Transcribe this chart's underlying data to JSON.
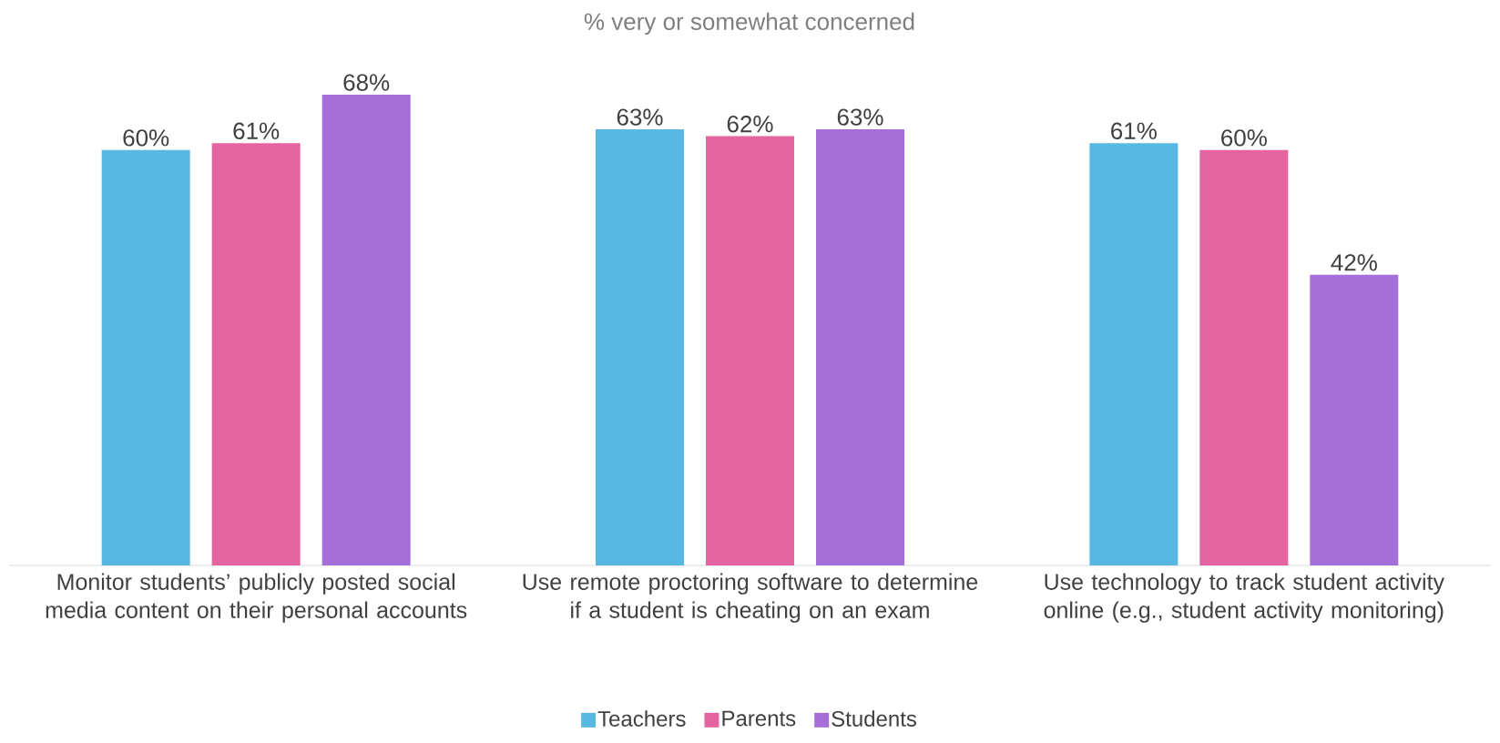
{
  "chart_data": {
    "type": "bar",
    "title": "% very or somewhat concerned",
    "categories": [
      "Monitor students’ publicly posted social media content on their personal accounts",
      "Use remote proctoring software to determine if a student is cheating on an exam",
      "Use technology to track student activity online (e.g., student activity monitoring)"
    ],
    "series": [
      {
        "name": "Teachers",
        "color": "#56b8e3",
        "values": [
          60,
          63,
          61
        ],
        "value_labels": [
          "60%",
          "63%",
          "61%"
        ]
      },
      {
        "name": "Parents",
        "color": "#e464a0",
        "values": [
          61,
          62,
          60
        ],
        "value_labels": [
          "61%",
          "62%",
          "60%"
        ]
      },
      {
        "name": "Students",
        "color": "#a56ed8",
        "values": [
          68,
          63,
          42
        ],
        "value_labels": [
          "68%",
          "63%",
          "42%"
        ]
      }
    ],
    "legend": "bottom"
  }
}
